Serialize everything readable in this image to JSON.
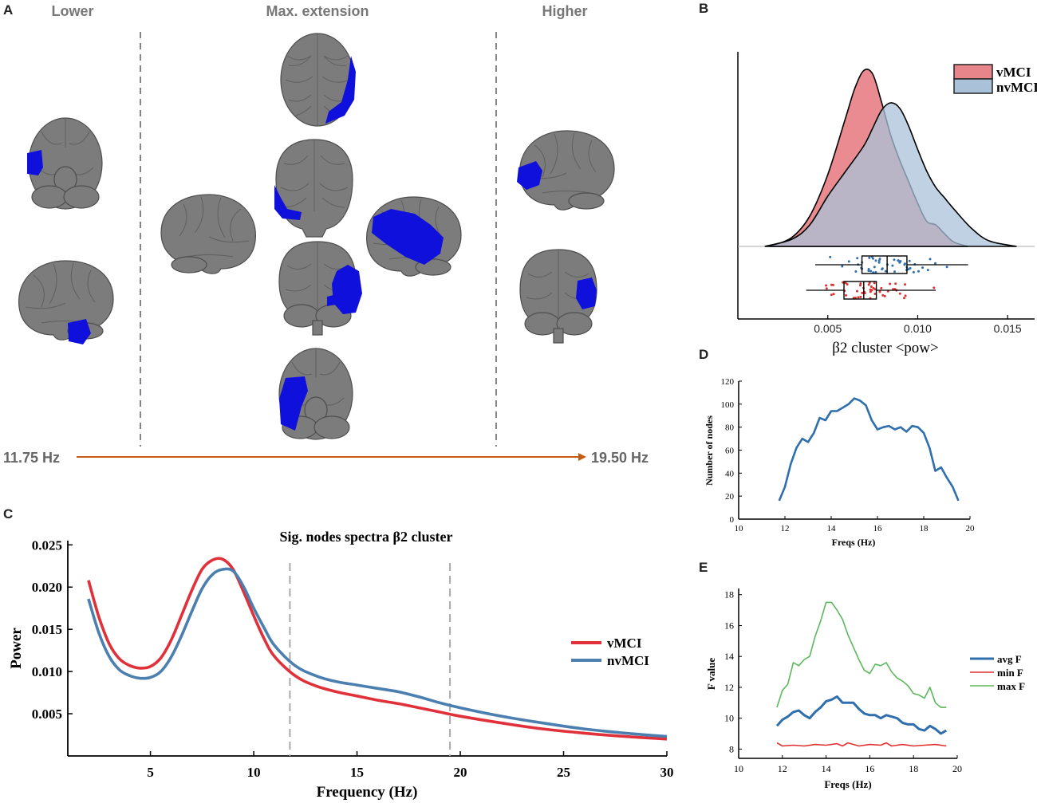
{
  "panelA": {
    "letter": "A",
    "headers": [
      "Lower",
      "Max. extension",
      "Higher"
    ],
    "freq_start": "11.75 Hz",
    "freq_end": "19.50 Hz",
    "colors": {
      "arrow": "#c55a11",
      "cluster": "#1010dd",
      "brain": "#7c7c7c"
    }
  },
  "panelB": {
    "letter": "B",
    "legend_vmci": "vMCI",
    "legend_nvmci": "nvMCI"
  },
  "panelC": {
    "letter": "C",
    "title": "Sig. nodes spectra β2 cluster"
  },
  "panelD": {
    "letter": "D"
  },
  "panelE": {
    "letter": "E"
  },
  "chart_data": [
    {
      "id": "B",
      "type": "density+boxplot",
      "xlabel": "β2 cluster <pow>",
      "xlim": [
        0.0,
        0.0165
      ],
      "xticks": [
        0.005,
        0.01,
        0.015
      ],
      "xtick_labels": [
        "0.005",
        "0.010",
        "0.015"
      ],
      "colors": {
        "vMCI": "#e8858a",
        "nvMCI": "#a9c1d9",
        "vMCI_dots": "#e03030",
        "nvMCI_dots": "#3070b0"
      },
      "series": [
        {
          "name": "vMCI",
          "x": [
            0.0018,
            0.003,
            0.004,
            0.005,
            0.006,
            0.0065,
            0.007,
            0.0075,
            0.008,
            0.0085,
            0.009,
            0.0095,
            0.01,
            0.0105,
            0.011,
            0.0115,
            0.012,
            0.0128
          ],
          "density": [
            0,
            0.05,
            0.17,
            0.4,
            0.72,
            0.88,
            0.98,
            0.96,
            0.8,
            0.62,
            0.48,
            0.36,
            0.24,
            0.14,
            0.12,
            0.07,
            0.025,
            0
          ]
        },
        {
          "name": "nvMCI",
          "x": [
            0.0015,
            0.003,
            0.004,
            0.005,
            0.006,
            0.007,
            0.0075,
            0.008,
            0.0085,
            0.009,
            0.0095,
            0.01,
            0.0105,
            0.011,
            0.0115,
            0.012,
            0.013,
            0.014,
            0.0155
          ],
          "density": [
            0,
            0.04,
            0.12,
            0.28,
            0.42,
            0.56,
            0.66,
            0.76,
            0.8,
            0.77,
            0.67,
            0.54,
            0.42,
            0.33,
            0.27,
            0.21,
            0.1,
            0.03,
            0
          ]
        }
      ],
      "boxplots": [
        {
          "name": "nvMCI",
          "whisker_low": 0.0043,
          "q1": 0.0069,
          "median": 0.0083,
          "q3": 0.0094,
          "whisker_high": 0.0128
        },
        {
          "name": "vMCI",
          "whisker_low": 0.0038,
          "q1": 0.0059,
          "median": 0.007,
          "q3": 0.0077,
          "whisker_high": 0.011
        }
      ]
    },
    {
      "id": "C",
      "type": "line",
      "title": "Sig. nodes spectra β2 cluster",
      "xlabel": "Frequency (Hz)",
      "ylabel": "Power",
      "xlim": [
        1,
        30
      ],
      "ylim": [
        0,
        0.0255
      ],
      "xticks": [
        5,
        10,
        15,
        20,
        25,
        30
      ],
      "yticks": [
        0.005,
        0.01,
        0.015,
        0.02,
        0.025
      ],
      "ytick_labels": [
        "0.005",
        "0.010",
        "0.015",
        "0.020",
        "0.025"
      ],
      "vlines": [
        11.75,
        19.5
      ],
      "legend": "right",
      "series": [
        {
          "name": "vMCI",
          "color": "#e0303a",
          "x": [
            2,
            2.5,
            3,
            3.5,
            4,
            4.5,
            5,
            5.5,
            6,
            6.5,
            7,
            7.5,
            8,
            8.5,
            9,
            9.5,
            10,
            10.5,
            11,
            12,
            13,
            14,
            15,
            16,
            17,
            18,
            19,
            20,
            22,
            24,
            26,
            28,
            30
          ],
          "y": [
            0.0208,
            0.0165,
            0.0133,
            0.0115,
            0.0107,
            0.0104,
            0.0106,
            0.0116,
            0.0137,
            0.0166,
            0.0196,
            0.0221,
            0.0232,
            0.0233,
            0.0221,
            0.0195,
            0.0166,
            0.0139,
            0.0118,
            0.0095,
            0.0083,
            0.0076,
            0.0071,
            0.0066,
            0.0062,
            0.0057,
            0.0052,
            0.0047,
            0.0039,
            0.0032,
            0.0027,
            0.0023,
            0.002
          ]
        },
        {
          "name": "nvMCI",
          "color": "#4a7fb0",
          "x": [
            2,
            2.5,
            3,
            3.5,
            4,
            4.5,
            5,
            5.5,
            6,
            6.5,
            7,
            7.5,
            8,
            8.5,
            9,
            9.5,
            10,
            10.5,
            11,
            12,
            13,
            14,
            15,
            16,
            17,
            18,
            19,
            20,
            22,
            24,
            26,
            28,
            30
          ],
          "y": [
            0.0186,
            0.0146,
            0.0118,
            0.0102,
            0.0095,
            0.0092,
            0.0093,
            0.01,
            0.0117,
            0.0142,
            0.0171,
            0.0198,
            0.0215,
            0.0221,
            0.0219,
            0.0201,
            0.0175,
            0.0152,
            0.0131,
            0.0107,
            0.0095,
            0.0088,
            0.0084,
            0.008,
            0.0076,
            0.007,
            0.0063,
            0.0057,
            0.0047,
            0.0039,
            0.0032,
            0.0027,
            0.0023
          ]
        }
      ]
    },
    {
      "id": "D",
      "type": "line",
      "xlabel": "Freqs (Hz)",
      "ylabel": "Number of nodes",
      "xlim": [
        10,
        20
      ],
      "ylim": [
        0,
        120
      ],
      "xticks": [
        10,
        12,
        14,
        16,
        18,
        20
      ],
      "yticks": [
        0,
        20,
        40,
        60,
        80,
        100,
        120
      ],
      "series": [
        {
          "name": "nodes",
          "color": "#2f6fad",
          "x": [
            11.75,
            12,
            12.25,
            12.5,
            12.75,
            13,
            13.25,
            13.5,
            13.75,
            14,
            14.25,
            14.5,
            14.75,
            15,
            15.25,
            15.5,
            15.75,
            16,
            16.25,
            16.5,
            16.75,
            17,
            17.25,
            17.5,
            17.75,
            18,
            18.25,
            18.5,
            18.75,
            19,
            19.25,
            19.5
          ],
          "y": [
            16,
            28,
            48,
            62,
            70,
            67,
            75,
            88,
            86,
            94,
            94,
            97,
            100,
            105,
            103,
            99,
            86,
            78,
            80,
            81,
            78,
            80,
            76,
            81,
            80,
            75,
            62,
            42,
            45,
            36,
            28,
            16
          ]
        }
      ]
    },
    {
      "id": "E",
      "type": "line",
      "xlabel": "Freqs (Hz)",
      "ylabel": "F value",
      "xlim": [
        10,
        20
      ],
      "ylim": [
        7.4,
        18.4
      ],
      "xticks": [
        10,
        12,
        14,
        16,
        18,
        20
      ],
      "yticks": [
        8,
        10,
        12,
        14,
        16,
        18
      ],
      "legend": "right",
      "series": [
        {
          "name": "avg F",
          "color": "#2f6fad",
          "x": [
            11.75,
            12,
            12.25,
            12.5,
            12.75,
            13,
            13.25,
            13.5,
            13.75,
            14,
            14.25,
            14.5,
            14.75,
            15,
            15.25,
            15.5,
            15.75,
            16,
            16.25,
            16.5,
            16.75,
            17,
            17.25,
            17.5,
            17.75,
            18,
            18.25,
            18.5,
            18.75,
            19,
            19.25,
            19.5
          ],
          "y": [
            9.5,
            9.9,
            10.1,
            10.4,
            10.5,
            10.2,
            10.0,
            10.4,
            10.7,
            11.1,
            11.2,
            11.4,
            11.0,
            11.0,
            11.0,
            10.6,
            10.3,
            10.2,
            10.2,
            10.0,
            10.2,
            10.1,
            10.0,
            9.7,
            9.6,
            9.6,
            9.3,
            9.2,
            9.5,
            9.3,
            9.0,
            9.2
          ]
        },
        {
          "name": "min F",
          "color": "#e03030",
          "x": [
            11.75,
            12,
            12.5,
            13,
            13.5,
            14,
            14.5,
            14.75,
            15,
            15.5,
            16,
            16.5,
            16.75,
            17,
            17.5,
            18,
            18.5,
            19,
            19.5
          ],
          "y": [
            8.4,
            8.2,
            8.25,
            8.2,
            8.3,
            8.25,
            8.35,
            8.2,
            8.4,
            8.2,
            8.3,
            8.25,
            8.4,
            8.2,
            8.3,
            8.2,
            8.25,
            8.3,
            8.2
          ]
        },
        {
          "name": "max F",
          "color": "#5cb85c",
          "x": [
            11.75,
            12,
            12.25,
            12.5,
            12.75,
            13,
            13.25,
            13.5,
            13.75,
            14,
            14.25,
            14.5,
            14.75,
            15,
            15.25,
            15.5,
            15.75,
            16,
            16.25,
            16.5,
            16.75,
            17,
            17.25,
            17.5,
            17.75,
            18,
            18.25,
            18.5,
            18.75,
            19,
            19.25,
            19.5
          ],
          "y": [
            10.7,
            11.8,
            12.2,
            13.6,
            13.4,
            13.8,
            14.0,
            15.3,
            16.3,
            17.5,
            17.5,
            17.0,
            16.4,
            15.4,
            14.6,
            13.8,
            13.1,
            12.9,
            13.5,
            13.4,
            13.6,
            13.0,
            12.6,
            12.4,
            12.1,
            11.6,
            11.5,
            11.3,
            12.0,
            11.0,
            10.7,
            10.7
          ]
        }
      ]
    }
  ]
}
